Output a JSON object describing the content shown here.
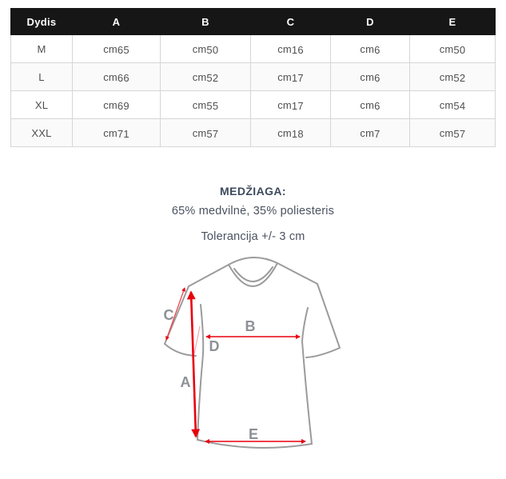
{
  "size_chart": {
    "headers": [
      "Dydis",
      "A",
      "B",
      "C",
      "D",
      "E"
    ],
    "rows": [
      {
        "size": "M",
        "values": [
          "cm65",
          "cm50",
          "cm16",
          "cm6",
          "cm50"
        ]
      },
      {
        "size": "L",
        "values": [
          "cm66",
          "cm52",
          "cm17",
          "cm6",
          "cm52"
        ]
      },
      {
        "size": "XL",
        "values": [
          "cm69",
          "cm55",
          "cm17",
          "cm6",
          "cm54"
        ]
      },
      {
        "size": "XXL",
        "values": [
          "cm71",
          "cm57",
          "cm18",
          "cm7",
          "cm57"
        ]
      }
    ]
  },
  "info": {
    "material_label": "MEDŽIAGA:",
    "material_value": "65% medvilnė, 35% poliesteris",
    "tolerance": "Tolerancija +/- 3 cm"
  },
  "diagram": {
    "type": "tshirt-measurement-guide",
    "labels": {
      "A": "A",
      "B": "B",
      "C": "C",
      "D": "D",
      "E": "E"
    },
    "colors": {
      "arrow": "#e8000e",
      "arrow_faint": "#f2a9b0",
      "outline": "#9b9b9b",
      "label": "#8d9095"
    }
  },
  "colors": {
    "header_bg": "#161616",
    "header_text": "#ffffff",
    "cell_text": "#4f4f4f",
    "table_border": "#d6d6d6",
    "info_heading": "#3d4a5c",
    "info_text": "#4a5260"
  }
}
